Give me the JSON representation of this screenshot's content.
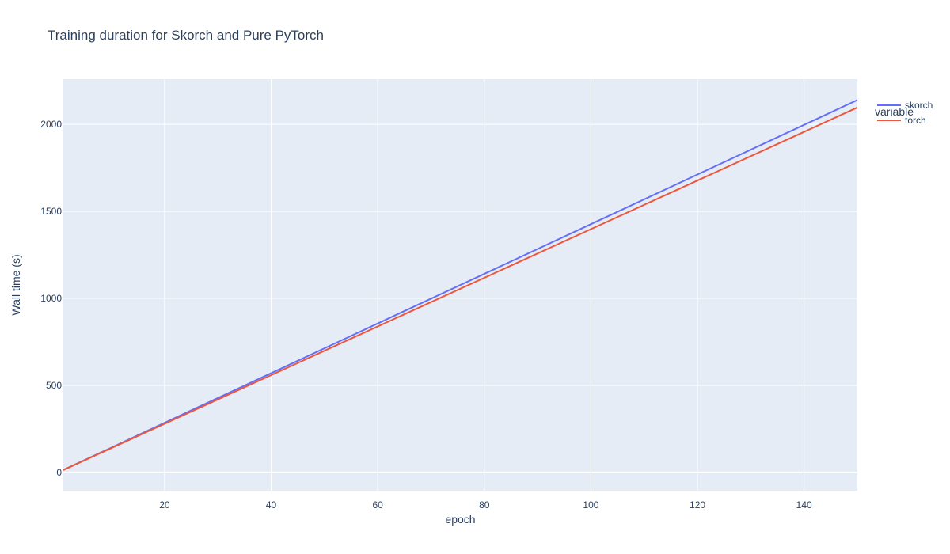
{
  "chart_data": {
    "type": "line",
    "title": "Training duration for Skorch and Pure PyTorch",
    "xlabel": "epoch",
    "ylabel": "Wall time (s)",
    "xlim": [
      1,
      150
    ],
    "ylim": [
      -105,
      2260
    ],
    "x_ticks": [
      20,
      40,
      60,
      80,
      100,
      120,
      140
    ],
    "y_ticks": [
      0,
      500,
      1000,
      1500,
      2000
    ],
    "grid": true,
    "legend_position": "top-right",
    "legend_title": "variable",
    "background_color": "#E5ECF6",
    "series": [
      {
        "name": "skorch",
        "color": "#636EFA",
        "x": [
          1,
          150
        ],
        "y": [
          14,
          2140
        ]
      },
      {
        "name": "torch",
        "color": "#EF553B",
        "x": [
          1,
          150
        ],
        "y": [
          14,
          2097
        ]
      }
    ]
  }
}
